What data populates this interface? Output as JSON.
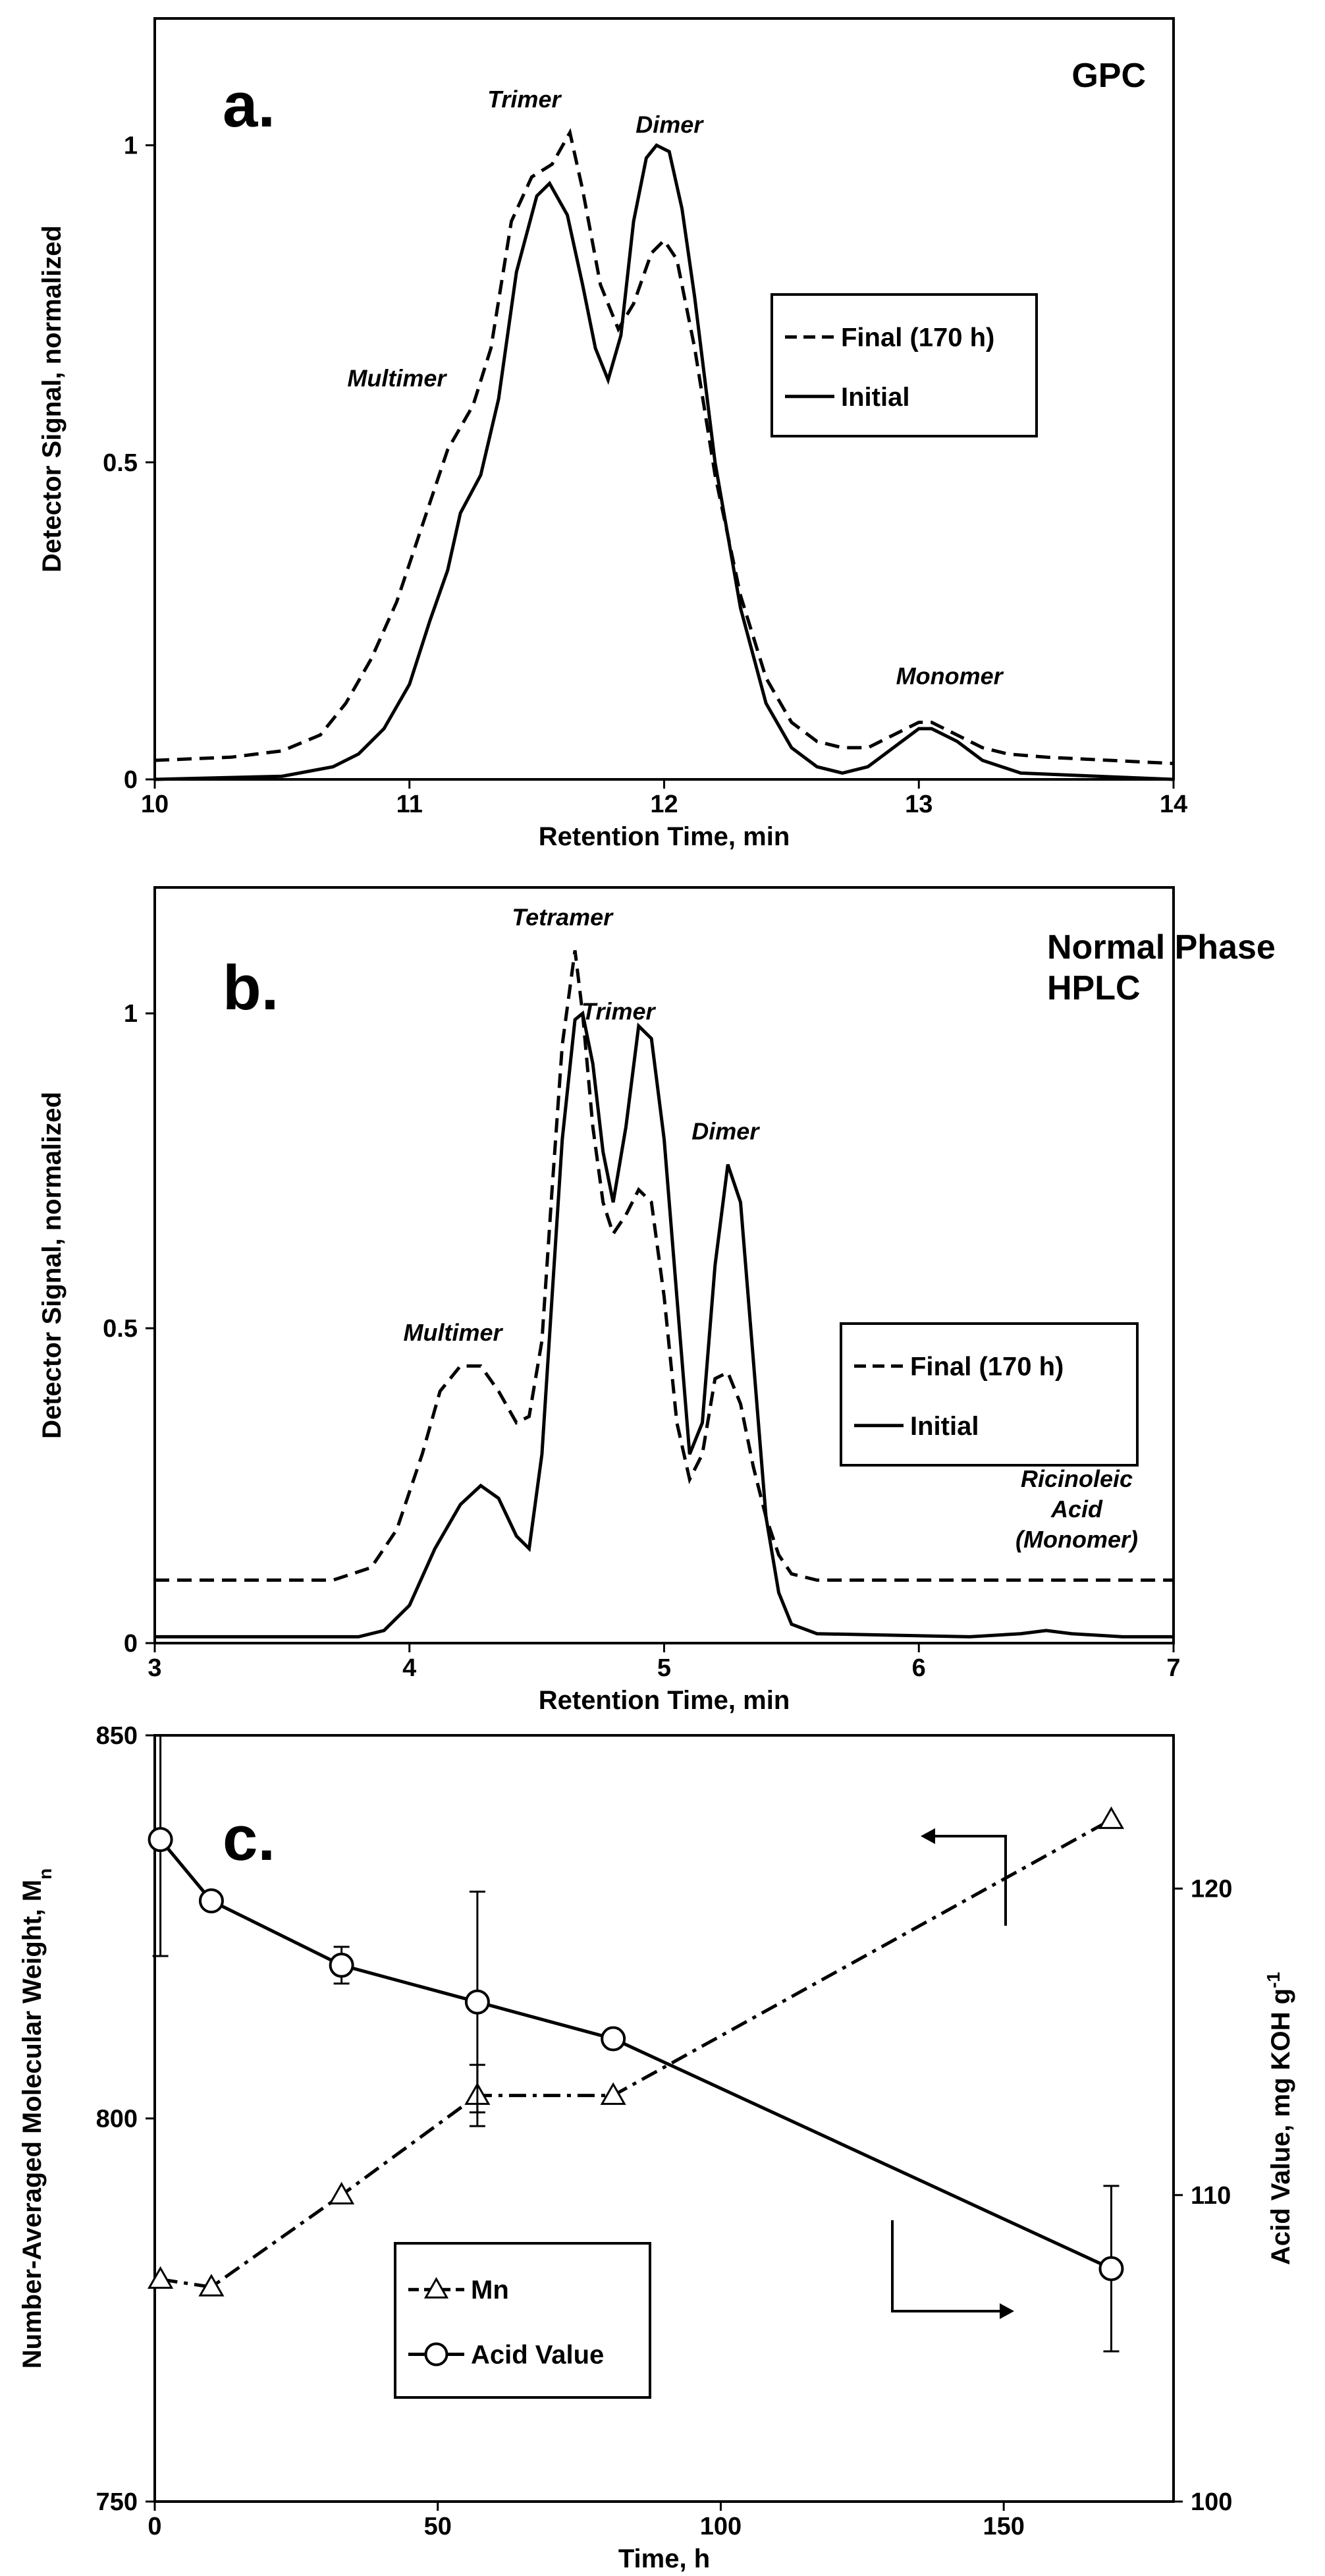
{
  "chart_data": [
    {
      "type": "line",
      "panel_label": "a.",
      "title": "GPC",
      "xlabel": "Retention Time, min",
      "ylabel": "Detector Signal, normalized",
      "xlim": [
        10,
        14
      ],
      "ylim": [
        0,
        1.2
      ],
      "xticks": [
        "10",
        "11",
        "12",
        "13",
        "14"
      ],
      "yticks": [
        "0",
        "0.5",
        "1"
      ],
      "xtick_values": [
        10,
        11,
        12,
        13,
        14
      ],
      "ytick_values": [
        0,
        0.5,
        1
      ],
      "legend": {
        "position": "right",
        "entries": [
          "Final (170 h)",
          "Initial"
        ]
      },
      "annotations": [
        {
          "text": "Trimer",
          "x": 11.45,
          "y": 1.06
        },
        {
          "text": "Dimer",
          "x": 12.02,
          "y": 1.02
        },
        {
          "text": "Multimer",
          "x": 10.95,
          "y": 0.62
        },
        {
          "text": "Monomer",
          "x": 13.12,
          "y": 0.15
        }
      ],
      "series": [
        {
          "name": "Final (170 h)",
          "style": "dashed",
          "x": [
            10.0,
            10.3,
            10.5,
            10.65,
            10.75,
            10.85,
            10.95,
            11.05,
            11.15,
            11.25,
            11.32,
            11.4,
            11.48,
            11.56,
            11.63,
            11.68,
            11.75,
            11.82,
            11.88,
            11.95,
            12.0,
            12.05,
            12.12,
            12.2,
            12.3,
            12.4,
            12.5,
            12.6,
            12.7,
            12.8,
            12.9,
            13.0,
            13.05,
            13.15,
            13.25,
            13.35,
            13.5,
            14.0
          ],
          "y": [
            0.03,
            0.035,
            0.045,
            0.07,
            0.12,
            0.19,
            0.28,
            0.4,
            0.52,
            0.59,
            0.68,
            0.88,
            0.95,
            0.97,
            1.02,
            0.93,
            0.78,
            0.71,
            0.75,
            0.83,
            0.85,
            0.82,
            0.68,
            0.48,
            0.29,
            0.16,
            0.09,
            0.06,
            0.05,
            0.05,
            0.07,
            0.09,
            0.09,
            0.07,
            0.05,
            0.04,
            0.035,
            0.025
          ]
        },
        {
          "name": "Initial",
          "style": "solid",
          "x": [
            10.0,
            10.5,
            10.7,
            10.8,
            10.9,
            11.0,
            11.08,
            11.15,
            11.2,
            11.28,
            11.35,
            11.42,
            11.5,
            11.55,
            11.62,
            11.68,
            11.73,
            11.78,
            11.83,
            11.88,
            11.93,
            11.97,
            12.02,
            12.07,
            12.12,
            12.2,
            12.3,
            12.4,
            12.5,
            12.6,
            12.7,
            12.8,
            12.9,
            13.0,
            13.05,
            13.15,
            13.25,
            13.4,
            14.0
          ],
          "y": [
            0.0,
            0.005,
            0.02,
            0.04,
            0.08,
            0.15,
            0.25,
            0.33,
            0.42,
            0.48,
            0.6,
            0.8,
            0.92,
            0.94,
            0.89,
            0.78,
            0.68,
            0.63,
            0.7,
            0.88,
            0.98,
            1.0,
            0.99,
            0.9,
            0.76,
            0.5,
            0.27,
            0.12,
            0.05,
            0.02,
            0.01,
            0.02,
            0.05,
            0.08,
            0.08,
            0.06,
            0.03,
            0.01,
            0.0
          ]
        }
      ]
    },
    {
      "type": "line",
      "panel_label": "b.",
      "title": "Normal Phase HPLC",
      "title_lines": [
        "Normal Phase",
        "HPLC"
      ],
      "xlabel": "Retention Time, min",
      "ylabel": "Detector Signal, normalized",
      "xlim": [
        3,
        7
      ],
      "ylim": [
        0,
        1.2
      ],
      "xticks": [
        "3",
        "4",
        "5",
        "6",
        "7"
      ],
      "yticks": [
        "0",
        "0.5",
        "1"
      ],
      "xtick_values": [
        3,
        4,
        5,
        6,
        7
      ],
      "ytick_values": [
        0,
        0.5,
        1
      ],
      "legend": {
        "position": "right",
        "entries": [
          "Final (170 h)",
          "Initial"
        ]
      },
      "annotations": [
        {
          "text": "Tetramer",
          "x": 4.6,
          "y": 1.14
        },
        {
          "text": "Trimer",
          "x": 4.82,
          "y": 0.99
        },
        {
          "text": "Dimer",
          "x": 5.24,
          "y": 0.8
        },
        {
          "text": "Multimer",
          "x": 4.17,
          "y": 0.48
        }
      ],
      "annotation_block": {
        "lines": [
          "Ricinoleic",
          "Acid",
          "(Monomer)"
        ],
        "x": 6.62,
        "y": 0.2
      },
      "series": [
        {
          "name": "Final (170 h)",
          "style": "dashed",
          "x": [
            3.0,
            3.7,
            3.85,
            3.95,
            4.05,
            4.12,
            4.2,
            4.28,
            4.35,
            4.42,
            4.47,
            4.52,
            4.56,
            4.6,
            4.65,
            4.68,
            4.72,
            4.76,
            4.8,
            4.85,
            4.9,
            4.95,
            5.0,
            5.05,
            5.1,
            5.15,
            5.2,
            5.25,
            5.3,
            5.35,
            5.4,
            5.45,
            5.5,
            5.6,
            5.8,
            7.0
          ],
          "y": [
            0.1,
            0.1,
            0.12,
            0.18,
            0.3,
            0.4,
            0.44,
            0.44,
            0.4,
            0.35,
            0.36,
            0.48,
            0.72,
            0.95,
            1.1,
            1.0,
            0.82,
            0.7,
            0.65,
            0.68,
            0.72,
            0.7,
            0.55,
            0.35,
            0.26,
            0.3,
            0.42,
            0.43,
            0.38,
            0.28,
            0.2,
            0.14,
            0.11,
            0.1,
            0.1,
            0.1
          ]
        },
        {
          "name": "Initial",
          "style": "solid",
          "x": [
            3.0,
            3.8,
            3.9,
            4.0,
            4.1,
            4.2,
            4.28,
            4.35,
            4.42,
            4.47,
            4.52,
            4.56,
            4.6,
            4.65,
            4.68,
            4.72,
            4.76,
            4.8,
            4.85,
            4.9,
            4.95,
            5.0,
            5.05,
            5.1,
            5.15,
            5.2,
            5.25,
            5.3,
            5.35,
            5.4,
            5.45,
            5.5,
            5.6,
            6.2,
            6.4,
            6.5,
            6.6,
            6.8,
            7.0
          ],
          "y": [
            0.01,
            0.01,
            0.02,
            0.06,
            0.15,
            0.22,
            0.25,
            0.23,
            0.17,
            0.15,
            0.3,
            0.55,
            0.8,
            0.99,
            1.0,
            0.92,
            0.78,
            0.7,
            0.82,
            0.98,
            0.96,
            0.8,
            0.55,
            0.3,
            0.35,
            0.6,
            0.76,
            0.7,
            0.45,
            0.2,
            0.08,
            0.03,
            0.015,
            0.01,
            0.015,
            0.02,
            0.015,
            0.01,
            0.01
          ]
        }
      ]
    },
    {
      "type": "line",
      "panel_label": "c.",
      "xlabel": "Time, h",
      "ylabel": "Number-Averaged Molecular Weight, M",
      "ylabel_subscript": "n",
      "ylabel_right": "Acid Value, mg KOH g",
      "ylabel_right_superscript": "-1",
      "xlim": [
        0,
        180
      ],
      "ylim": [
        750,
        850
      ],
      "ylim_right": [
        100,
        125
      ],
      "xticks": [
        "0",
        "50",
        "100",
        "150"
      ],
      "yticks": [
        "750",
        "800",
        "850"
      ],
      "yticks_right": [
        "100",
        "110",
        "120"
      ],
      "xtick_values": [
        0,
        50,
        100,
        150
      ],
      "ytick_values": [
        750,
        800,
        850
      ],
      "ytick_right_values": [
        100,
        110,
        120
      ],
      "legend": {
        "position": "bottom-left",
        "entries": [
          "Mn",
          "Acid Value"
        ]
      },
      "series": [
        {
          "name": "Mn",
          "axis": "left",
          "marker": "triangle",
          "style": "dashdot",
          "x": [
            1,
            10,
            33,
            57,
            81,
            169
          ],
          "y": [
            779,
            778,
            790,
            803,
            803,
            839
          ],
          "yerr": [
            0,
            0,
            0,
            4,
            0,
            0
          ]
        },
        {
          "name": "Acid Value",
          "axis": "right",
          "marker": "circle",
          "style": "solid",
          "x": [
            1,
            10,
            33,
            57,
            81,
            169
          ],
          "y": [
            121.6,
            119.6,
            117.5,
            116.3,
            115.1,
            107.6
          ],
          "yerr": [
            3.8,
            0,
            0.6,
            3.6,
            0,
            2.7
          ]
        }
      ]
    }
  ]
}
